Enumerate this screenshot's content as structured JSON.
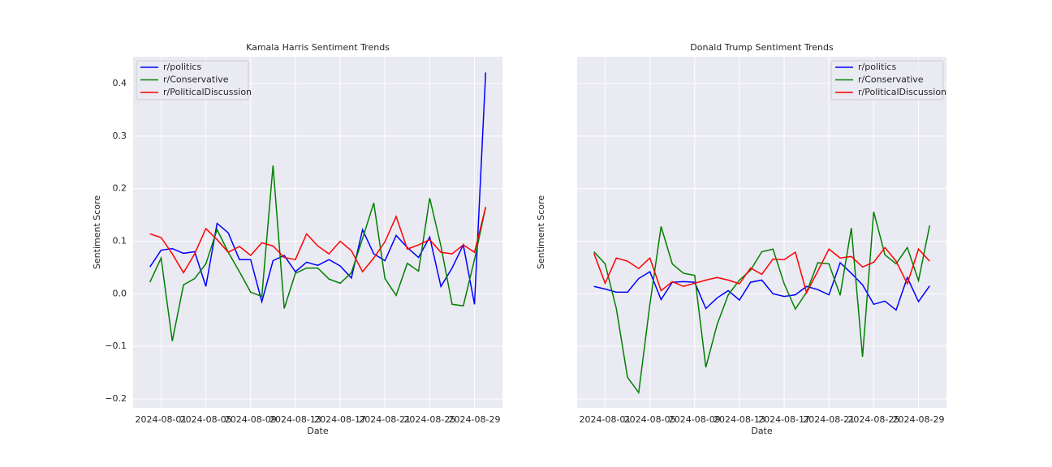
{
  "chart_data": [
    {
      "type": "line",
      "title": "Kamala Harris Sentiment Trends",
      "xlabel": "Date",
      "ylabel": "Sentiment Score",
      "x": [
        "2024-07-31",
        "2024-08-01",
        "2024-08-02",
        "2024-08-03",
        "2024-08-04",
        "2024-08-05",
        "2024-08-06",
        "2024-08-07",
        "2024-08-08",
        "2024-08-09",
        "2024-08-10",
        "2024-08-11",
        "2024-08-12",
        "2024-08-13",
        "2024-08-14",
        "2024-08-15",
        "2024-08-16",
        "2024-08-17",
        "2024-08-18",
        "2024-08-19",
        "2024-08-20",
        "2024-08-21",
        "2024-08-22",
        "2024-08-23",
        "2024-08-24",
        "2024-08-25",
        "2024-08-26",
        "2024-08-27",
        "2024-08-28",
        "2024-08-29",
        "2024-08-30"
      ],
      "xlim": [
        "2024-07-29T12:00",
        "2024-08-31T12:00"
      ],
      "xticks": [
        "2024-08-01",
        "2024-08-05",
        "2024-08-09",
        "2024-08-13",
        "2024-08-17",
        "2024-08-21",
        "2024-08-25",
        "2024-08-29"
      ],
      "ylim": [
        -0.217,
        0.451
      ],
      "yticks": [
        {
          "value": -0.2,
          "label": "−0.2"
        },
        {
          "value": -0.1,
          "label": "−0.1"
        },
        {
          "value": 0,
          "label": "0.0"
        },
        0.1,
        0.2,
        0.3,
        0.4
      ],
      "grid": true,
      "legend": "upper left",
      "series": [
        {
          "name": "r/politics",
          "color": "#0000ff",
          "values": [
            0.051,
            0.083,
            0.086,
            0.077,
            0.08,
            0.014,
            0.134,
            0.116,
            0.065,
            0.065,
            -0.015,
            0.063,
            0.073,
            0.042,
            0.06,
            0.054,
            0.065,
            0.053,
            0.03,
            0.122,
            0.076,
            0.063,
            0.111,
            0.088,
            0.069,
            0.108,
            0.014,
            0.049,
            0.093,
            -0.02,
            0.421
          ]
        },
        {
          "name": "r/Conservative",
          "color": "#008000",
          "values": [
            0.022,
            0.068,
            -0.09,
            0.017,
            0.029,
            0.057,
            0.122,
            0.079,
            0.042,
            0.003,
            -0.005,
            0.244,
            -0.028,
            0.039,
            0.049,
            0.049,
            0.028,
            0.02,
            0.04,
            0.105,
            0.173,
            0.029,
            -0.003,
            0.058,
            0.043,
            0.182,
            0.091,
            -0.02,
            -0.023,
            0.065,
            0.165
          ]
        },
        {
          "name": "r/PoliticalDiscussion",
          "color": "#ff0000",
          "values": [
            0.114,
            0.107,
            0.076,
            0.04,
            0.076,
            0.124,
            0.103,
            0.079,
            0.09,
            0.073,
            0.097,
            0.091,
            0.069,
            0.065,
            0.114,
            0.091,
            0.076,
            0.1,
            0.082,
            0.042,
            0.068,
            0.099,
            0.147,
            0.085,
            0.093,
            0.103,
            0.079,
            0.076,
            0.093,
            0.079,
            0.165
          ]
        }
      ]
    },
    {
      "type": "line",
      "title": "Donald Trump Sentiment Trends",
      "xlabel": "Date",
      "ylabel": "Sentiment Score",
      "x": [
        "2024-07-31",
        "2024-08-01",
        "2024-08-02",
        "2024-08-03",
        "2024-08-04",
        "2024-08-05",
        "2024-08-06",
        "2024-08-07",
        "2024-08-08",
        "2024-08-09",
        "2024-08-10",
        "2024-08-11",
        "2024-08-12",
        "2024-08-13",
        "2024-08-14",
        "2024-08-15",
        "2024-08-16",
        "2024-08-17",
        "2024-08-18",
        "2024-08-19",
        "2024-08-20",
        "2024-08-21",
        "2024-08-22",
        "2024-08-23",
        "2024-08-24",
        "2024-08-25",
        "2024-08-26",
        "2024-08-27",
        "2024-08-28",
        "2024-08-29",
        "2024-08-30"
      ],
      "xlim": [
        "2024-07-29T12:00",
        "2024-08-31T12:00"
      ],
      "xticks": [
        "2024-08-01",
        "2024-08-05",
        "2024-08-09",
        "2024-08-13",
        "2024-08-17",
        "2024-08-21",
        "2024-08-25",
        "2024-08-29"
      ],
      "grid": true,
      "legend": "upper right",
      "series": [
        {
          "name": "r/politics",
          "color": "#0000ff",
          "values": [
            0.014,
            0.009,
            0.003,
            0.003,
            0.029,
            0.042,
            -0.011,
            0.022,
            0.023,
            0.022,
            -0.028,
            -0.008,
            0.006,
            -0.012,
            0.022,
            0.026,
            0.0,
            -0.005,
            -0.002,
            0.014,
            0.008,
            -0.002,
            0.059,
            0.039,
            0.017,
            -0.02,
            -0.014,
            -0.031,
            0.031,
            -0.015,
            0.015
          ]
        },
        {
          "name": "r/Conservative",
          "color": "#008000",
          "values": [
            0.08,
            0.057,
            -0.028,
            -0.159,
            -0.188,
            -0.02,
            0.128,
            0.057,
            0.039,
            0.035,
            -0.14,
            -0.059,
            -0.002,
            0.026,
            0.045,
            0.08,
            0.085,
            0.019,
            -0.029,
            0.003,
            0.059,
            0.057,
            -0.003,
            0.125,
            -0.12,
            0.156,
            0.074,
            0.057,
            0.088,
            0.025,
            0.13
          ]
        },
        {
          "name": "r/PoliticalDiscussion",
          "color": "#ff0000",
          "values": [
            0.077,
            0.02,
            0.068,
            0.062,
            0.048,
            0.068,
            0.006,
            0.023,
            0.014,
            0.02,
            0.026,
            0.031,
            0.026,
            0.019,
            0.049,
            0.037,
            0.066,
            0.065,
            0.079,
            0.002,
            0.043,
            0.085,
            0.068,
            0.071,
            0.051,
            0.06,
            0.088,
            0.062,
            0.019,
            0.085,
            0.062
          ]
        }
      ]
    }
  ]
}
